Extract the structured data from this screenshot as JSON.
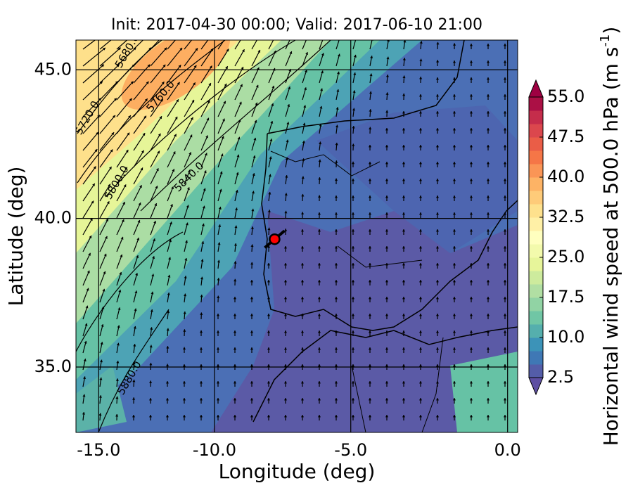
{
  "chart_data": {
    "type": "map",
    "title": "Init: 2017-04-30 00:00; Valid: 2017-06-10 21:00",
    "xlabel": "Longitude (deg)",
    "ylabel": "Latitude (deg)",
    "xlim": [
      -16.1,
      0.3
    ],
    "ylim": [
      32.8,
      46.0
    ],
    "xticks": [
      {
        "value": -15,
        "label": "-15.0"
      },
      {
        "value": -10,
        "label": "-10.0"
      },
      {
        "value": -5,
        "label": "-5.0"
      },
      {
        "value": 0,
        "label": "0.0"
      }
    ],
    "yticks": [
      {
        "value": 35,
        "label": "35.0"
      },
      {
        "value": 40,
        "label": "40.0"
      },
      {
        "value": 45,
        "label": "45.0"
      }
    ],
    "grid": true,
    "colorbar": {
      "label": "Horizontal wind speed at 500.0 hPa (m s",
      "label_exponent": "-1",
      "label_close": ")",
      "clim": [
        2.5,
        55
      ],
      "ticks": [
        2.5,
        {
          "value": 10,
          "label": "10.0"
        },
        17.5,
        {
          "value": 25,
          "label": "25.0"
        },
        32.5,
        {
          "value": 40,
          "label": "40.0"
        },
        47.5,
        {
          "value": 55,
          "label": "55.0"
        }
      ],
      "colormap": [
        "#5e4fa2",
        "#3288bd",
        "#66c2a5",
        "#abdda4",
        "#e6f598",
        "#ffffbf",
        "#fee08b",
        "#fdae61",
        "#f46d43",
        "#d53e4f",
        "#9e0142"
      ]
    },
    "contour_labels": [
      "5680.0",
      "5720.0",
      "5760.0",
      "5800.0",
      "5840.0",
      "5880.0"
    ],
    "marker": {
      "lon": -7.7,
      "lat": 39.3,
      "color": "#ff0000"
    }
  }
}
